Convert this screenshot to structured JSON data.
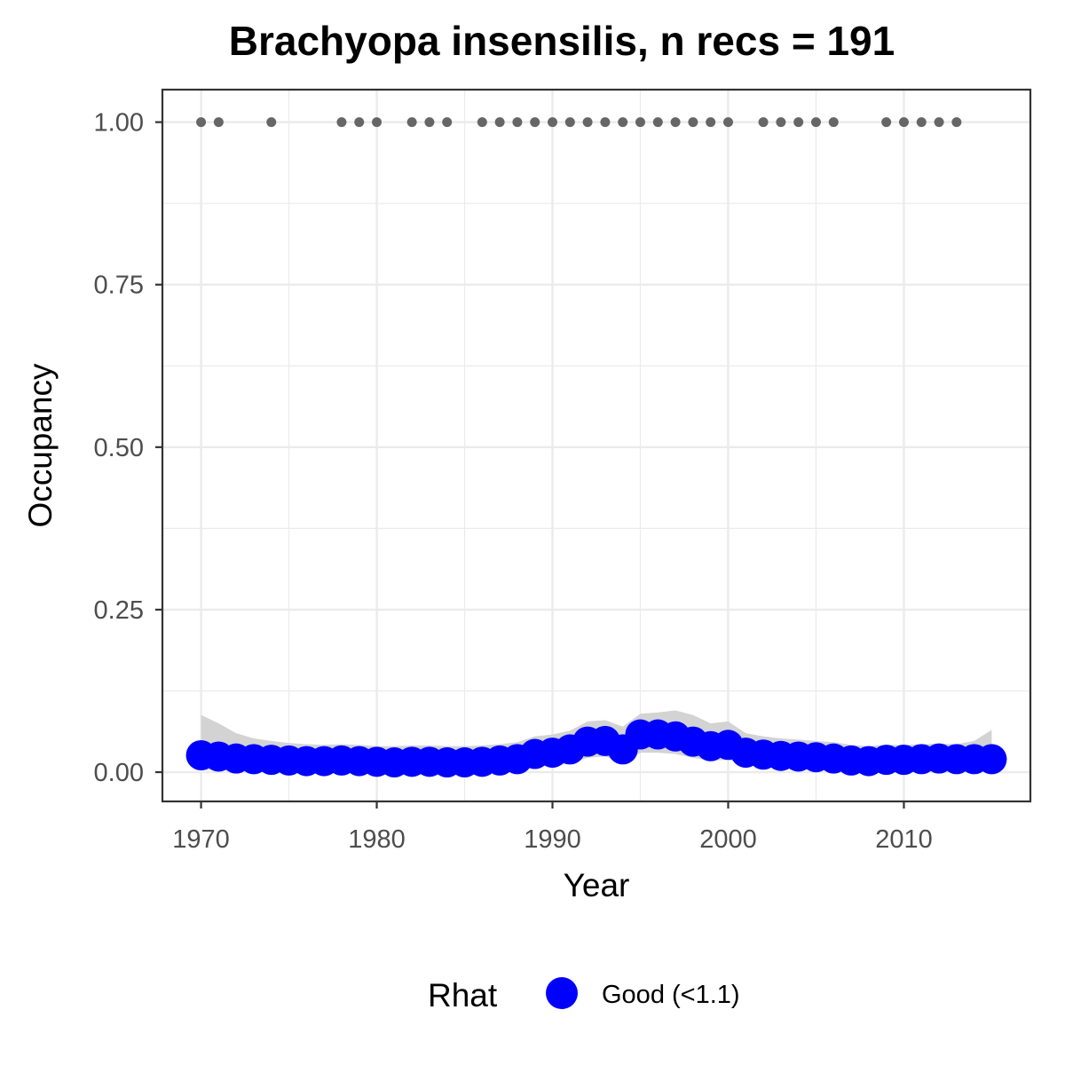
{
  "chart_data": {
    "type": "scatter",
    "title": "Brachyopa insensilis, n recs = 191",
    "xlabel": "Year",
    "ylabel": "Occupancy",
    "xlim": [
      1967.8,
      2017.2
    ],
    "ylim": [
      -0.045,
      1.05
    ],
    "x_ticks": [
      1970,
      1980,
      1990,
      2000,
      2010
    ],
    "x_tick_labels": [
      "1970",
      "1980",
      "1990",
      "2000",
      "2010"
    ],
    "y_ticks": [
      0,
      0.25,
      0.5,
      0.75,
      1
    ],
    "y_tick_labels": [
      "0.00",
      "0.25",
      "0.50",
      "0.75",
      "1.00"
    ],
    "grid": true,
    "legend": {
      "title": "Rhat",
      "position": "bottom",
      "entries": [
        {
          "label": "Good (<1.1)",
          "color": "#0000ff"
        }
      ]
    },
    "colors": {
      "occupancy_points": "#0000ff",
      "ribbon": "#d3d3d3",
      "record_points": "#666666"
    },
    "series": [
      {
        "name": "Good (<1.1)",
        "x": [
          1970,
          1971,
          1972,
          1973,
          1974,
          1975,
          1976,
          1977,
          1978,
          1979,
          1980,
          1981,
          1982,
          1983,
          1984,
          1985,
          1986,
          1987,
          1988,
          1989,
          1990,
          1991,
          1992,
          1993,
          1994,
          1995,
          1996,
          1997,
          1998,
          1999,
          2000,
          2001,
          2002,
          2003,
          2004,
          2005,
          2006,
          2007,
          2008,
          2009,
          2010,
          2011,
          2012,
          2013,
          2014,
          2015
        ],
        "y": [
          0.026,
          0.024,
          0.021,
          0.02,
          0.019,
          0.018,
          0.017,
          0.017,
          0.018,
          0.017,
          0.016,
          0.015,
          0.016,
          0.016,
          0.015,
          0.015,
          0.016,
          0.018,
          0.02,
          0.028,
          0.03,
          0.035,
          0.047,
          0.048,
          0.035,
          0.058,
          0.058,
          0.055,
          0.047,
          0.04,
          0.042,
          0.03,
          0.027,
          0.025,
          0.024,
          0.023,
          0.021,
          0.018,
          0.017,
          0.019,
          0.019,
          0.02,
          0.021,
          0.02,
          0.02,
          0.02
        ],
        "lower": [
          0.003,
          0.004,
          0.004,
          0.004,
          0.004,
          0.004,
          0.004,
          0.004,
          0.004,
          0.004,
          0.003,
          0.003,
          0.003,
          0.003,
          0.003,
          0.003,
          0.003,
          0.004,
          0.005,
          0.009,
          0.01,
          0.013,
          0.022,
          0.024,
          0.015,
          0.03,
          0.03,
          0.028,
          0.022,
          0.018,
          0.019,
          0.012,
          0.01,
          0.009,
          0.008,
          0.007,
          0.006,
          0.005,
          0.004,
          0.005,
          0.005,
          0.005,
          0.006,
          0.005,
          0.004,
          0.003
        ],
        "upper": [
          0.088,
          0.075,
          0.06,
          0.052,
          0.048,
          0.045,
          0.043,
          0.042,
          0.043,
          0.042,
          0.04,
          0.04,
          0.041,
          0.041,
          0.04,
          0.04,
          0.041,
          0.043,
          0.046,
          0.055,
          0.058,
          0.064,
          0.078,
          0.08,
          0.07,
          0.09,
          0.092,
          0.095,
          0.088,
          0.075,
          0.078,
          0.06,
          0.055,
          0.052,
          0.05,
          0.048,
          0.046,
          0.042,
          0.04,
          0.042,
          0.042,
          0.043,
          0.044,
          0.043,
          0.048,
          0.065
        ]
      },
      {
        "x": [
          1970,
          1971,
          1974,
          1978,
          1979,
          1980,
          1982,
          1983,
          1984,
          1986,
          1987,
          1988,
          1989,
          1990,
          1991,
          1992,
          1993,
          1994,
          1995,
          1996,
          1997,
          1998,
          1999,
          2000,
          2002,
          2003,
          2004,
          2005,
          2006,
          2009,
          2010,
          2011,
          2012,
          2013
        ],
        "y": [
          1,
          1,
          1,
          1,
          1,
          1,
          1,
          1,
          1,
          1,
          1,
          1,
          1,
          1,
          1,
          1,
          1,
          1,
          1,
          1,
          1,
          1,
          1,
          1,
          1,
          1,
          1,
          1,
          1,
          1,
          1,
          1,
          1,
          1
        ]
      }
    ]
  }
}
